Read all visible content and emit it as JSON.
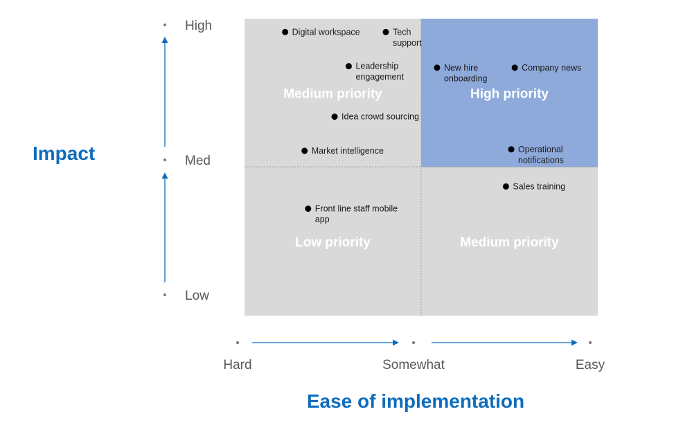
{
  "chart_data": {
    "type": "scatter",
    "xlabel": "Ease of implementation",
    "ylabel": "Impact",
    "x_ticks": [
      "Hard",
      "Somewhat",
      "Easy"
    ],
    "y_ticks": [
      "Low",
      "Med",
      "High"
    ],
    "xlim": [
      0,
      2
    ],
    "ylim": [
      0,
      2
    ],
    "quadrants": [
      {
        "label": "Medium priority",
        "x_range": [
          0,
          1
        ],
        "y_range": [
          1,
          2
        ],
        "color": "#d9d9d9"
      },
      {
        "label": "High priority",
        "x_range": [
          1,
          2
        ],
        "y_range": [
          1,
          2
        ],
        "color": "#8eaadb"
      },
      {
        "label": "Low priority",
        "x_range": [
          0,
          1
        ],
        "y_range": [
          0,
          1
        ],
        "color": "#d9d9d9"
      },
      {
        "label": "Medium priority",
        "x_range": [
          1,
          2
        ],
        "y_range": [
          0,
          1
        ],
        "color": "#d9d9d9"
      }
    ],
    "points": [
      {
        "lines": [
          "Digital workspace"
        ],
        "x": 0.23,
        "y": 1.91
      },
      {
        "lines": [
          "Tech",
          "support"
        ],
        "x": 0.8,
        "y": 1.91
      },
      {
        "lines": [
          "Leadership",
          "engagement"
        ],
        "x": 0.59,
        "y": 1.68
      },
      {
        "lines": [
          "Idea crowd sourcing"
        ],
        "x": 0.51,
        "y": 1.34
      },
      {
        "lines": [
          "Market intelligence"
        ],
        "x": 0.34,
        "y": 1.11
      },
      {
        "lines": [
          "New hire",
          "onboarding"
        ],
        "x": 1.09,
        "y": 1.67
      },
      {
        "lines": [
          "Company news"
        ],
        "x": 1.53,
        "y": 1.67
      },
      {
        "lines": [
          "Operational",
          "notifications"
        ],
        "x": 1.51,
        "y": 1.12
      },
      {
        "lines": [
          "Sales training"
        ],
        "x": 1.48,
        "y": 0.87
      },
      {
        "lines": [
          "Front line staff mobile",
          "app"
        ],
        "x": 0.36,
        "y": 0.72
      }
    ]
  }
}
